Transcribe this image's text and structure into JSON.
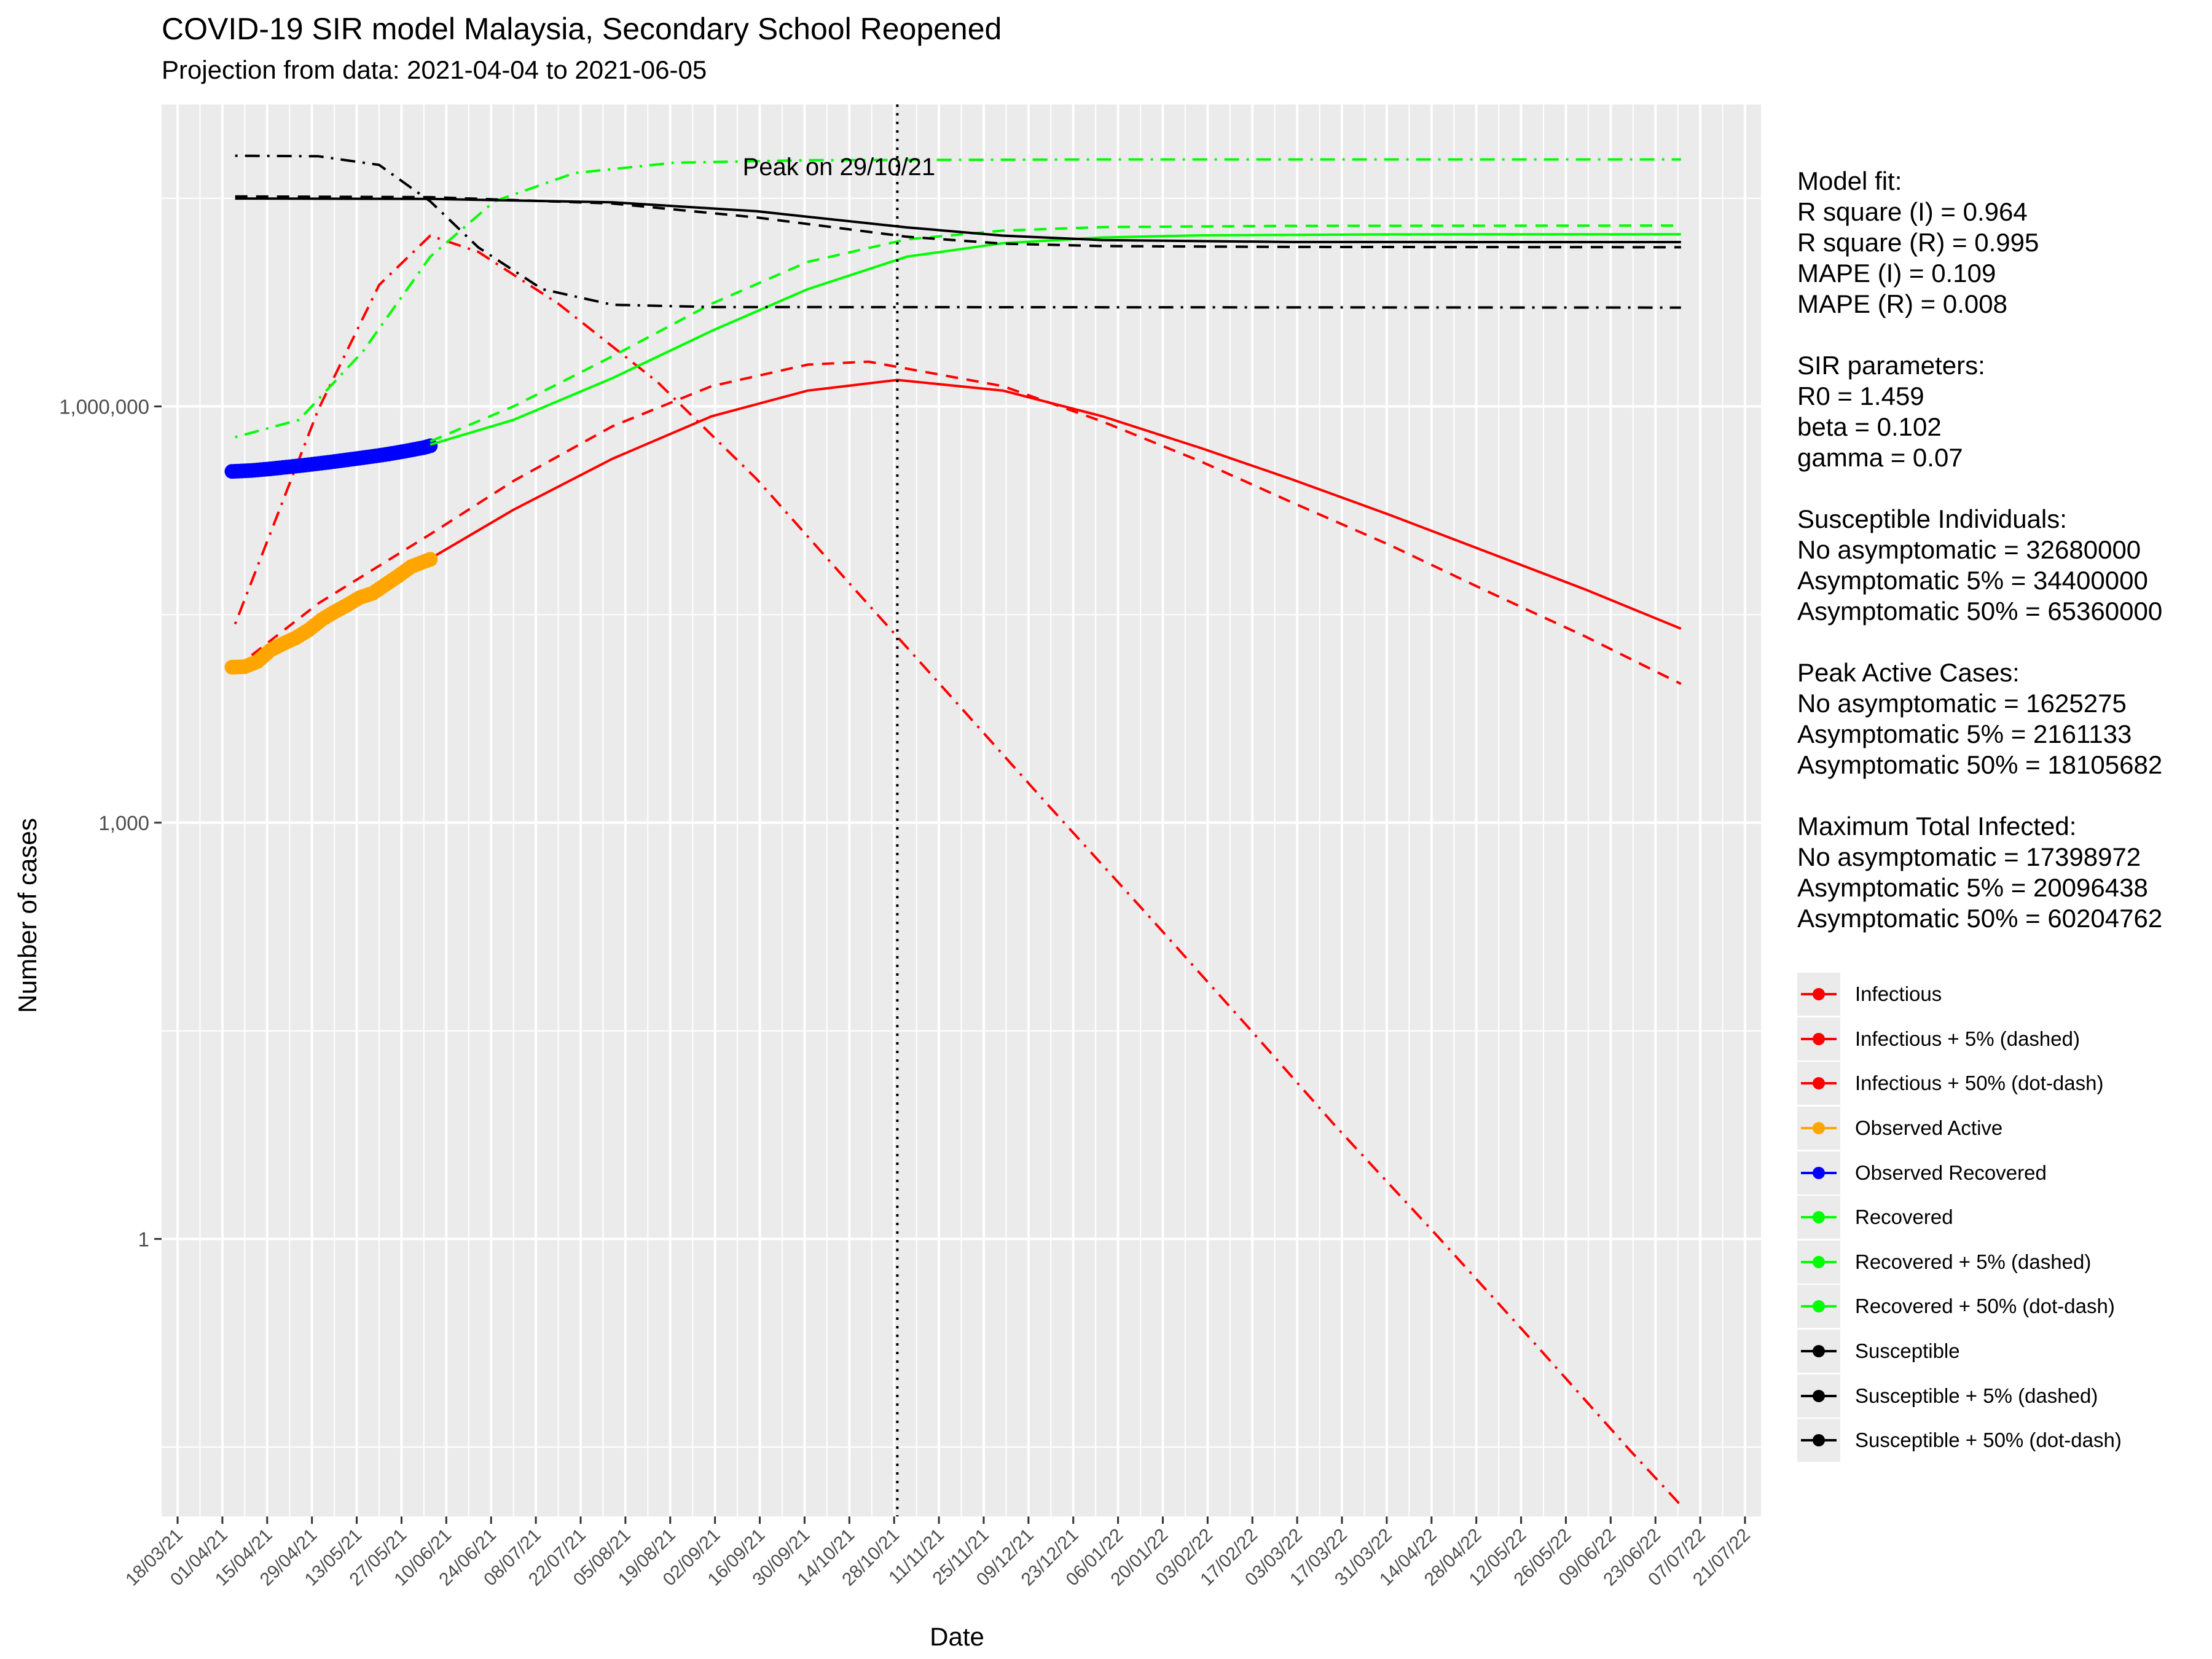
{
  "title": "COVID-19 SIR model Malaysia, Secondary School Reopened",
  "subtitle": "Projection from data: 2021-04-04 to 2021-06-05",
  "xlabel": "Date",
  "ylabel": "Number of cases",
  "annotation": "Peak on 29/10/21",
  "stats": {
    "model_fit": {
      "heading": "Model fit:",
      "lines": [
        "R square (I) = 0.964",
        "R square (R) = 0.995",
        "MAPE (I) = 0.109",
        "MAPE (R) = 0.008"
      ]
    },
    "sir_parameters": {
      "heading": "SIR parameters:",
      "lines": [
        "R0 = 1.459",
        "beta = 0.102",
        "gamma = 0.07"
      ]
    },
    "susceptible": {
      "heading": "Susceptible Individuals:",
      "lines": [
        "No asymptomatic = 32680000",
        "Asymptomatic 5% = 34400000",
        "Asymptomatic 50% = 65360000"
      ]
    },
    "peak_active": {
      "heading": "Peak Active Cases:",
      "lines": [
        "No asymptomatic = 1625275",
        "Asymptomatic 5% = 2161133",
        "Asymptomatic 50% = 18105682"
      ]
    },
    "max_infected": {
      "heading": "Maximum Total Infected:",
      "lines": [
        "No asymptomatic = 17398972",
        "Asymptomatic 5% = 20096438",
        "Asymptomatic 50% = 60204762"
      ]
    }
  },
  "legend": [
    {
      "label": "Infectious",
      "color": "#ff0000"
    },
    {
      "label": "Infectious + 5% (dashed)",
      "color": "#ff0000"
    },
    {
      "label": "Infectious + 50% (dot-dash)",
      "color": "#ff0000"
    },
    {
      "label": "Observed Active",
      "color": "#ffa500"
    },
    {
      "label": "Observed Recovered",
      "color": "#0000ff"
    },
    {
      "label": "Recovered",
      "color": "#00ff00"
    },
    {
      "label": "Recovered + 5% (dashed)",
      "color": "#00ff00"
    },
    {
      "label": "Recovered + 50% (dot-dash)",
      "color": "#00ff00"
    },
    {
      "label": "Susceptible",
      "color": "#000000"
    },
    {
      "label": "Susceptible + 5% (dashed)",
      "color": "#000000"
    },
    {
      "label": "Susceptible + 50% (dot-dash)",
      "color": "#000000"
    }
  ],
  "chart_data": {
    "type": "line",
    "title": "COVID-19 SIR model Malaysia, Secondary School Reopened",
    "subtitle": "Projection from data: 2021-04-04 to 2021-06-05",
    "xlabel": "Date",
    "ylabel": "Number of cases",
    "y_scale": "log10",
    "ylim": [
      0.01,
      150000000
    ],
    "xlim": [
      "2021-03-13",
      "2022-07-26"
    ],
    "grid": true,
    "legend_position": "right",
    "x_tick_labels": [
      "18/03/21",
      "01/04/21",
      "15/04/21",
      "29/04/21",
      "13/05/21",
      "27/05/21",
      "10/06/21",
      "24/06/21",
      "08/07/21",
      "22/07/21",
      "05/08/21",
      "19/08/21",
      "02/09/21",
      "16/09/21",
      "30/09/21",
      "14/10/21",
      "28/10/21",
      "11/11/21",
      "25/11/21",
      "09/12/21",
      "23/12/21",
      "06/01/22",
      "20/01/22",
      "03/02/22",
      "17/02/22",
      "03/03/22",
      "17/03/22",
      "31/03/22",
      "14/04/22",
      "28/04/22",
      "12/05/22",
      "26/05/22",
      "09/06/22",
      "23/06/22",
      "07/07/22",
      "21/07/22"
    ],
    "y_ticks": [
      1,
      1000,
      1000000
    ],
    "y_tick_labels": [
      "1",
      "1,000",
      "1,000,000"
    ],
    "vline": {
      "x": "2021-10-29",
      "label": "Peak on 29/10/21"
    },
    "series": [
      {
        "name": "Infectious",
        "color": "#ff0000",
        "dash": "solid",
        "points": [
          [
            "2021-04-05",
            13000
          ],
          [
            "2021-05-01",
            30000
          ],
          [
            "2021-06-05",
            80000
          ],
          [
            "2021-07-01",
            180000
          ],
          [
            "2021-08-01",
            420000
          ],
          [
            "2021-09-01",
            850000
          ],
          [
            "2021-10-01",
            1300000
          ],
          [
            "2021-10-29",
            1550000
          ],
          [
            "2021-12-01",
            1300000
          ],
          [
            "2022-01-01",
            850000
          ],
          [
            "2022-02-01",
            500000
          ],
          [
            "2022-03-01",
            300000
          ],
          [
            "2022-04-01",
            165000
          ],
          [
            "2022-05-01",
            90000
          ],
          [
            "2022-06-01",
            48000
          ],
          [
            "2022-07-01",
            25000
          ]
        ]
      },
      {
        "name": "Infectious + 5% (dashed)",
        "color": "#ff0000",
        "dash": "dashed",
        "points": [
          [
            "2021-04-05",
            13000
          ],
          [
            "2021-05-01",
            38000
          ],
          [
            "2021-06-05",
            120000
          ],
          [
            "2021-07-01",
            290000
          ],
          [
            "2021-08-01",
            720000
          ],
          [
            "2021-09-01",
            1400000
          ],
          [
            "2021-10-01",
            2000000
          ],
          [
            "2021-10-20",
            2100000
          ],
          [
            "2021-12-01",
            1400000
          ],
          [
            "2022-01-01",
            780000
          ],
          [
            "2022-02-01",
            400000
          ],
          [
            "2022-03-01",
            205000
          ],
          [
            "2022-04-01",
            100000
          ],
          [
            "2022-05-01",
            47000
          ],
          [
            "2022-06-01",
            22000
          ],
          [
            "2022-07-01",
            10000
          ]
        ]
      },
      {
        "name": "Infectious + 50% (dot-dash)",
        "color": "#ff0000",
        "dash": "dotdash",
        "points": [
          [
            "2021-04-05",
            27000
          ],
          [
            "2021-05-01",
            950000
          ],
          [
            "2021-05-20",
            7500000
          ],
          [
            "2021-06-05",
            17000000
          ],
          [
            "2021-06-20",
            13000000
          ],
          [
            "2021-07-15",
            5500000
          ],
          [
            "2021-08-15",
            1500000
          ],
          [
            "2021-09-15",
            300000
          ],
          [
            "2021-10-15",
            50000
          ],
          [
            "2021-11-15",
            8000
          ],
          [
            "2021-12-15",
            1350
          ],
          [
            "2022-01-15",
            220
          ],
          [
            "2022-02-15",
            35
          ],
          [
            "2022-03-15",
            6.5
          ],
          [
            "2022-04-15",
            1.1
          ],
          [
            "2022-05-15",
            0.19
          ],
          [
            "2022-06-15",
            0.03
          ],
          [
            "2022-07-01",
            0.012
          ]
        ]
      },
      {
        "name": "Observed Active",
        "color": "#ffa500",
        "dash": "points",
        "points": [
          [
            "2021-04-04",
            13200
          ],
          [
            "2021-04-08",
            13300
          ],
          [
            "2021-04-12",
            14500
          ],
          [
            "2021-04-16",
            17500
          ],
          [
            "2021-04-20",
            19500
          ],
          [
            "2021-04-24",
            21500
          ],
          [
            "2021-04-28",
            24500
          ],
          [
            "2021-05-02",
            29000
          ],
          [
            "2021-05-06",
            33000
          ],
          [
            "2021-05-10",
            37000
          ],
          [
            "2021-05-14",
            42000
          ],
          [
            "2021-05-18",
            45000
          ],
          [
            "2021-05-22",
            52000
          ],
          [
            "2021-05-26",
            60000
          ],
          [
            "2021-05-30",
            70000
          ],
          [
            "2021-06-03",
            76000
          ],
          [
            "2021-06-05",
            79000
          ]
        ]
      },
      {
        "name": "Observed Recovered",
        "color": "#0000ff",
        "dash": "points",
        "points": [
          [
            "2021-04-04",
            340000
          ],
          [
            "2021-04-10",
            345000
          ],
          [
            "2021-04-16",
            355000
          ],
          [
            "2021-04-22",
            367000
          ],
          [
            "2021-04-28",
            380000
          ],
          [
            "2021-05-04",
            395000
          ],
          [
            "2021-05-10",
            412000
          ],
          [
            "2021-05-16",
            430000
          ],
          [
            "2021-05-22",
            450000
          ],
          [
            "2021-05-28",
            475000
          ],
          [
            "2021-06-03",
            505000
          ],
          [
            "2021-06-05",
            520000
          ]
        ]
      },
      {
        "name": "Recovered",
        "color": "#00ff00",
        "dash": "solid",
        "points": [
          [
            "2021-06-05",
            530000
          ],
          [
            "2021-07-01",
            800000
          ],
          [
            "2021-08-01",
            1600000
          ],
          [
            "2021-09-01",
            3500000
          ],
          [
            "2021-10-01",
            7000000
          ],
          [
            "2021-11-01",
            12000000
          ],
          [
            "2021-12-01",
            15000000
          ],
          [
            "2022-01-01",
            16500000
          ],
          [
            "2022-02-01",
            17100000
          ],
          [
            "2022-04-01",
            17350000
          ],
          [
            "2022-07-01",
            17398972
          ]
        ]
      },
      {
        "name": "Recovered + 5% (dashed)",
        "color": "#00ff00",
        "dash": "dashed",
        "points": [
          [
            "2021-06-05",
            560000
          ],
          [
            "2021-07-01",
            1000000
          ],
          [
            "2021-08-01",
            2300000
          ],
          [
            "2021-09-01",
            5500000
          ],
          [
            "2021-10-01",
            11000000
          ],
          [
            "2021-11-01",
            16000000
          ],
          [
            "2021-12-01",
            18500000
          ],
          [
            "2022-01-01",
            19600000
          ],
          [
            "2022-03-01",
            20000000
          ],
          [
            "2022-07-01",
            20096438
          ]
        ]
      },
      {
        "name": "Recovered + 50% (dot-dash)",
        "color": "#00ff00",
        "dash": "dotdash",
        "points": [
          [
            "2021-04-05",
            600000
          ],
          [
            "2021-04-25",
            800000
          ],
          [
            "2021-05-15",
            2500000
          ],
          [
            "2021-06-05",
            12000000
          ],
          [
            "2021-06-25",
            30000000
          ],
          [
            "2021-07-20",
            48000000
          ],
          [
            "2021-08-20",
            57000000
          ],
          [
            "2021-10-01",
            59500000
          ],
          [
            "2022-01-01",
            60200000
          ],
          [
            "2022-07-01",
            60204762
          ]
        ]
      },
      {
        "name": "Susceptible",
        "color": "#000000",
        "dash": "solid",
        "points": [
          [
            "2021-04-05",
            31500000
          ],
          [
            "2021-06-05",
            31300000
          ],
          [
            "2021-08-01",
            29600000
          ],
          [
            "2021-09-15",
            25500000
          ],
          [
            "2021-11-01",
            19500000
          ],
          [
            "2021-12-01",
            17000000
          ],
          [
            "2022-01-01",
            15800000
          ],
          [
            "2022-03-01",
            15300000
          ],
          [
            "2022-07-01",
            15281000
          ]
        ]
      },
      {
        "name": "Susceptible + 5% (dashed)",
        "color": "#000000",
        "dash": "dashed",
        "points": [
          [
            "2021-04-05",
            32600000
          ],
          [
            "2021-06-05",
            32200000
          ],
          [
            "2021-08-01",
            29000000
          ],
          [
            "2021-09-15",
            23000000
          ],
          [
            "2021-11-01",
            16700000
          ],
          [
            "2021-12-01",
            14900000
          ],
          [
            "2022-01-01",
            14300000
          ],
          [
            "2022-03-01",
            14100000
          ],
          [
            "2022-07-01",
            14030000
          ]
        ]
      },
      {
        "name": "Susceptible + 50% (dot-dash)",
        "color": "#000000",
        "dash": "dotdash",
        "points": [
          [
            "2021-04-05",
            64000000
          ],
          [
            "2021-05-01",
            63500000
          ],
          [
            "2021-05-20",
            55000000
          ],
          [
            "2021-06-05",
            30000000
          ],
          [
            "2021-06-20",
            14000000
          ],
          [
            "2021-07-10",
            7000000
          ],
          [
            "2021-08-01",
            5400000
          ],
          [
            "2021-09-01",
            5200000
          ],
          [
            "2022-07-01",
            5155000
          ]
        ]
      }
    ]
  }
}
